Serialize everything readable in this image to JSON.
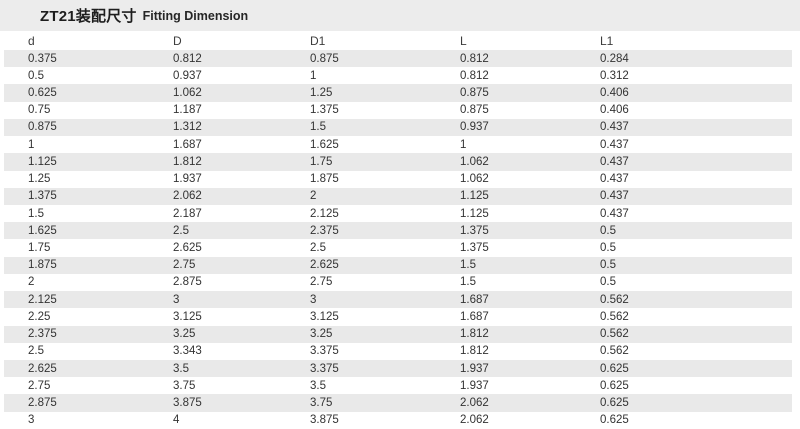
{
  "title": {
    "main": "ZT21装配尺寸",
    "sub": "Fitting Dimension"
  },
  "table": {
    "headers": [
      "d",
      "D",
      "D1",
      "L",
      "L1"
    ],
    "rows": [
      [
        "0.375",
        "0.812",
        "0.875",
        "0.812",
        "0.284"
      ],
      [
        "0.5",
        "0.937",
        "1",
        "0.812",
        "0.312"
      ],
      [
        "0.625",
        "1.062",
        "1.25",
        "0.875",
        "0.406"
      ],
      [
        "0.75",
        "1.187",
        "1.375",
        "0.875",
        "0.406"
      ],
      [
        "0.875",
        "1.312",
        "1.5",
        "0.937",
        "0.437"
      ],
      [
        "1",
        "1.687",
        "1.625",
        "1",
        "0.437"
      ],
      [
        "1.125",
        "1.812",
        "1.75",
        "1.062",
        "0.437"
      ],
      [
        "1.25",
        "1.937",
        "1.875",
        "1.062",
        "0.437"
      ],
      [
        "1.375",
        "2.062",
        "2",
        "1.125",
        "0.437"
      ],
      [
        "1.5",
        "2.187",
        "2.125",
        "1.125",
        "0.437"
      ],
      [
        "1.625",
        "2.5",
        "2.375",
        "1.375",
        "0.5"
      ],
      [
        "1.75",
        "2.625",
        "2.5",
        "1.375",
        "0.5"
      ],
      [
        "1.875",
        "2.75",
        "2.625",
        "1.5",
        "0.5"
      ],
      [
        "2",
        "2.875",
        "2.75",
        "1.5",
        "0.5"
      ],
      [
        "2.125",
        "3",
        "3",
        "1.687",
        "0.562"
      ],
      [
        "2.25",
        "3.125",
        "3.125",
        "1.687",
        "0.562"
      ],
      [
        "2.375",
        "3.25",
        "3.25",
        "1.812",
        "0.562"
      ],
      [
        "2.5",
        "3.343",
        "3.375",
        "1.812",
        "0.562"
      ],
      [
        "2.625",
        "3.5",
        "3.375",
        "1.937",
        "0.625"
      ],
      [
        "2.75",
        "3.75",
        "3.5",
        "1.937",
        "0.625"
      ],
      [
        "2.875",
        "3.875",
        "3.75",
        "2.062",
        "0.625"
      ],
      [
        "3",
        "4",
        "3.875",
        "2.062",
        "0.625"
      ]
    ]
  },
  "colors": {
    "title_band": "#ececec",
    "row_stripe": "#e9e9e9",
    "text": "#333333"
  }
}
